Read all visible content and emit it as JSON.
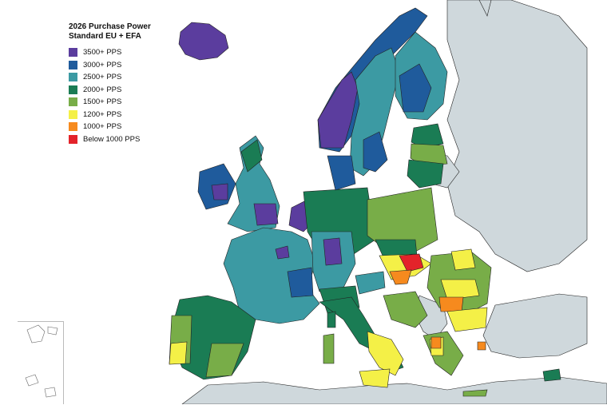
{
  "legend": {
    "title_line1": "2026 Purchase Power",
    "title_line2": "Standard EU + EFA",
    "items": [
      {
        "label": "3500+ PPS",
        "color": "#5b3d9e"
      },
      {
        "label": "3000+ PPS",
        "color": "#1f5b9c"
      },
      {
        "label": "2500+ PPS",
        "color": "#3c9aa3"
      },
      {
        "label": "2000+ PPS",
        "color": "#1a7c54"
      },
      {
        "label": "1500+ PPS",
        "color": "#78ad48"
      },
      {
        "label": "1200+ PPS",
        "color": "#f4f047"
      },
      {
        "label": "1000+ PPS",
        "color": "#f68a1e"
      },
      {
        "label": "Below 1000 PPS",
        "color": "#e3232a"
      }
    ]
  },
  "colors": {
    "sea": "#ffffff",
    "non_member_land": "#cfd8dc",
    "border": "#111111"
  }
}
